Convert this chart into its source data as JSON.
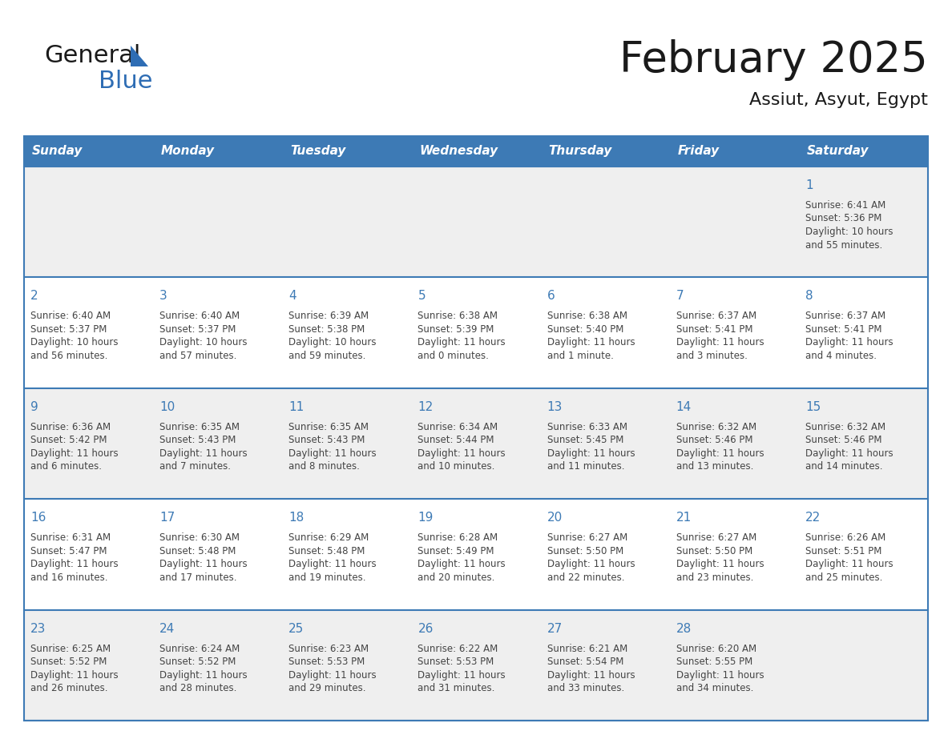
{
  "title": "February 2025",
  "subtitle": "Assiut, Asyut, Egypt",
  "days_of_week": [
    "Sunday",
    "Monday",
    "Tuesday",
    "Wednesday",
    "Thursday",
    "Friday",
    "Saturday"
  ],
  "header_bg": "#3d7ab5",
  "header_text": "#ffffff",
  "cell_bg_light": "#efefef",
  "cell_bg_white": "#ffffff",
  "border_color": "#3d7ab5",
  "day_num_color": "#3d7ab5",
  "text_color": "#444444",
  "title_color": "#1a1a1a",
  "logo_text_color": "#1a1a1a",
  "logo_blue_color": "#2e6db4",
  "calendar_data": [
    [
      null,
      null,
      null,
      null,
      null,
      null,
      {
        "day": 1,
        "sunrise": "6:41 AM",
        "sunset": "5:36 PM",
        "daylight_line1": "10 hours",
        "daylight_line2": "and 55 minutes."
      }
    ],
    [
      {
        "day": 2,
        "sunrise": "6:40 AM",
        "sunset": "5:37 PM",
        "daylight_line1": "10 hours",
        "daylight_line2": "and 56 minutes."
      },
      {
        "day": 3,
        "sunrise": "6:40 AM",
        "sunset": "5:37 PM",
        "daylight_line1": "10 hours",
        "daylight_line2": "and 57 minutes."
      },
      {
        "day": 4,
        "sunrise": "6:39 AM",
        "sunset": "5:38 PM",
        "daylight_line1": "10 hours",
        "daylight_line2": "and 59 minutes."
      },
      {
        "day": 5,
        "sunrise": "6:38 AM",
        "sunset": "5:39 PM",
        "daylight_line1": "11 hours",
        "daylight_line2": "and 0 minutes."
      },
      {
        "day": 6,
        "sunrise": "6:38 AM",
        "sunset": "5:40 PM",
        "daylight_line1": "11 hours",
        "daylight_line2": "and 1 minute."
      },
      {
        "day": 7,
        "sunrise": "6:37 AM",
        "sunset": "5:41 PM",
        "daylight_line1": "11 hours",
        "daylight_line2": "and 3 minutes."
      },
      {
        "day": 8,
        "sunrise": "6:37 AM",
        "sunset": "5:41 PM",
        "daylight_line1": "11 hours",
        "daylight_line2": "and 4 minutes."
      }
    ],
    [
      {
        "day": 9,
        "sunrise": "6:36 AM",
        "sunset": "5:42 PM",
        "daylight_line1": "11 hours",
        "daylight_line2": "and 6 minutes."
      },
      {
        "day": 10,
        "sunrise": "6:35 AM",
        "sunset": "5:43 PM",
        "daylight_line1": "11 hours",
        "daylight_line2": "and 7 minutes."
      },
      {
        "day": 11,
        "sunrise": "6:35 AM",
        "sunset": "5:43 PM",
        "daylight_line1": "11 hours",
        "daylight_line2": "and 8 minutes."
      },
      {
        "day": 12,
        "sunrise": "6:34 AM",
        "sunset": "5:44 PM",
        "daylight_line1": "11 hours",
        "daylight_line2": "and 10 minutes."
      },
      {
        "day": 13,
        "sunrise": "6:33 AM",
        "sunset": "5:45 PM",
        "daylight_line1": "11 hours",
        "daylight_line2": "and 11 minutes."
      },
      {
        "day": 14,
        "sunrise": "6:32 AM",
        "sunset": "5:46 PM",
        "daylight_line1": "11 hours",
        "daylight_line2": "and 13 minutes."
      },
      {
        "day": 15,
        "sunrise": "6:32 AM",
        "sunset": "5:46 PM",
        "daylight_line1": "11 hours",
        "daylight_line2": "and 14 minutes."
      }
    ],
    [
      {
        "day": 16,
        "sunrise": "6:31 AM",
        "sunset": "5:47 PM",
        "daylight_line1": "11 hours",
        "daylight_line2": "and 16 minutes."
      },
      {
        "day": 17,
        "sunrise": "6:30 AM",
        "sunset": "5:48 PM",
        "daylight_line1": "11 hours",
        "daylight_line2": "and 17 minutes."
      },
      {
        "day": 18,
        "sunrise": "6:29 AM",
        "sunset": "5:48 PM",
        "daylight_line1": "11 hours",
        "daylight_line2": "and 19 minutes."
      },
      {
        "day": 19,
        "sunrise": "6:28 AM",
        "sunset": "5:49 PM",
        "daylight_line1": "11 hours",
        "daylight_line2": "and 20 minutes."
      },
      {
        "day": 20,
        "sunrise": "6:27 AM",
        "sunset": "5:50 PM",
        "daylight_line1": "11 hours",
        "daylight_line2": "and 22 minutes."
      },
      {
        "day": 21,
        "sunrise": "6:27 AM",
        "sunset": "5:50 PM",
        "daylight_line1": "11 hours",
        "daylight_line2": "and 23 minutes."
      },
      {
        "day": 22,
        "sunrise": "6:26 AM",
        "sunset": "5:51 PM",
        "daylight_line1": "11 hours",
        "daylight_line2": "and 25 minutes."
      }
    ],
    [
      {
        "day": 23,
        "sunrise": "6:25 AM",
        "sunset": "5:52 PM",
        "daylight_line1": "11 hours",
        "daylight_line2": "and 26 minutes."
      },
      {
        "day": 24,
        "sunrise": "6:24 AM",
        "sunset": "5:52 PM",
        "daylight_line1": "11 hours",
        "daylight_line2": "and 28 minutes."
      },
      {
        "day": 25,
        "sunrise": "6:23 AM",
        "sunset": "5:53 PM",
        "daylight_line1": "11 hours",
        "daylight_line2": "and 29 minutes."
      },
      {
        "day": 26,
        "sunrise": "6:22 AM",
        "sunset": "5:53 PM",
        "daylight_line1": "11 hours",
        "daylight_line2": "and 31 minutes."
      },
      {
        "day": 27,
        "sunrise": "6:21 AM",
        "sunset": "5:54 PM",
        "daylight_line1": "11 hours",
        "daylight_line2": "and 33 minutes."
      },
      {
        "day": 28,
        "sunrise": "6:20 AM",
        "sunset": "5:55 PM",
        "daylight_line1": "11 hours",
        "daylight_line2": "and 34 minutes."
      },
      null
    ]
  ]
}
